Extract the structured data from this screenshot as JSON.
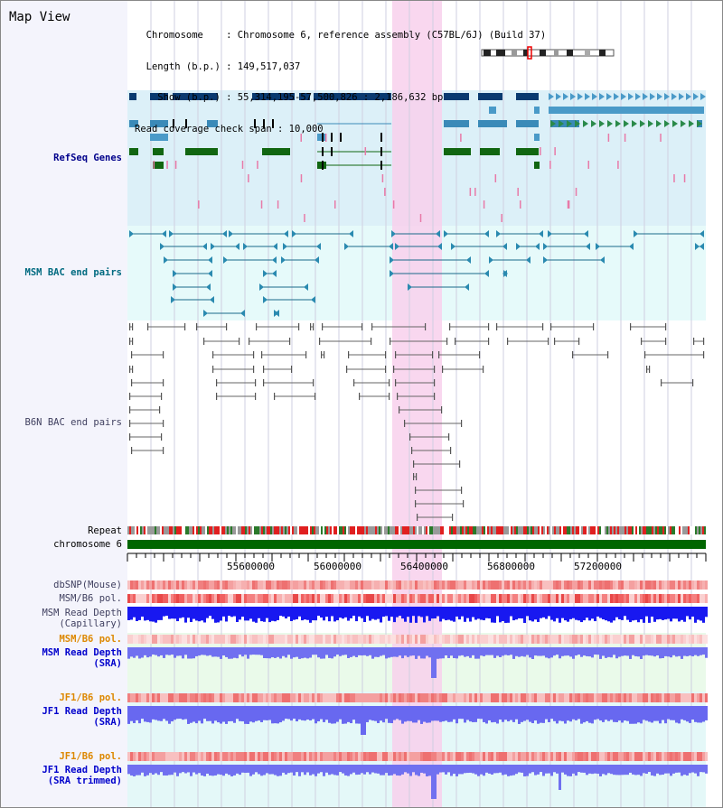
{
  "view_title": "Map View",
  "info_lines": [
    "  Chromosome    : Chromosome 6, reference assembly (C57BL/6J) (Build 37)",
    "  Length (b.p.) : 149,517,037",
    "    Show (b.p.) : 55,314,195-57,500,826 : 2,186,632 bp",
    "Read coverage check span : 10,000"
  ],
  "tracks": {
    "refseq": "RefSeq Genes",
    "msm_bac": "MSM BAC end pairs",
    "b6n_bac": "B6N BAC end pairs",
    "repeat": "Repeat",
    "chromosome": "chromosome 6",
    "dbsnp": "dbSNP(Mouse)",
    "msm_pol": "MSM/B6 pol.",
    "msm_depth_cap": "MSM Read Depth\n(Capillary)",
    "msm_pol_sra": "MSM/B6 pol.",
    "msm_depth_sra": "MSM Read Depth\n(SRA)",
    "jf1_pol": "JF1/B6 pol.",
    "jf1_depth_sra": "JF1 Read Depth\n(SRA)",
    "jf1_pol_trim": "JF1/B6 pol.",
    "jf1_depth_trim": "JF1 Read Depth\n(SRA trimmed)"
  },
  "ruler_ticks": [
    "55600000",
    "56000000",
    "56400000",
    "56800000",
    "57200000"
  ],
  "colors": {
    "refseq_label": "#00008b",
    "msm_bac_label": "#006a80",
    "b6n_label": "#404060",
    "orange_label": "#dd8800",
    "highlight": "#f8d0ec",
    "chromosome_bar": "#006600",
    "refseq_bg": "#dcf0f8",
    "msm_bg": "#e6fafa",
    "depth_blue": "#1010ee"
  }
}
